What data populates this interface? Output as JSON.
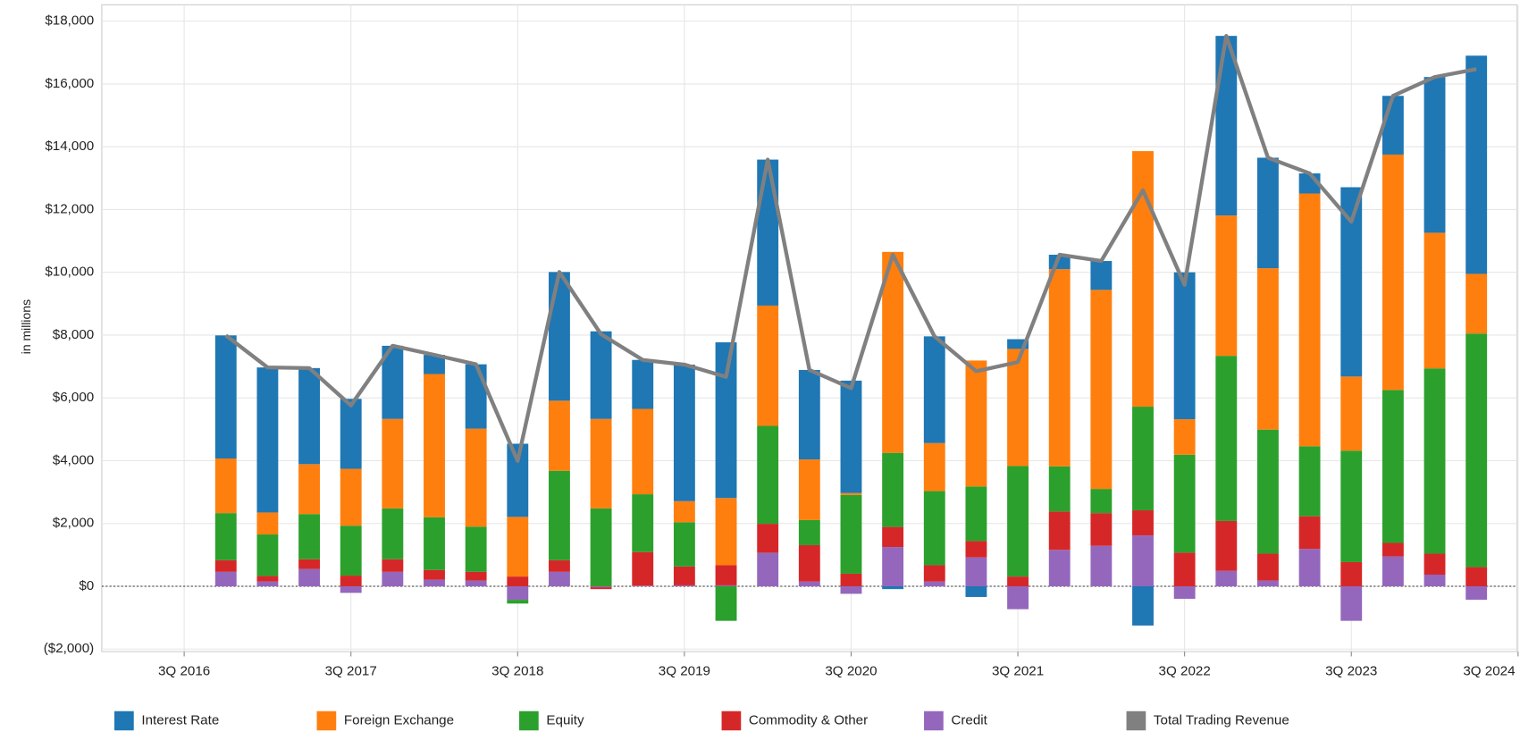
{
  "chart_data": {
    "type": "bar",
    "stacked": true,
    "y_label": "in millions",
    "categories": [
      "3Q 2016",
      null,
      null,
      null,
      "3Q 2017",
      null,
      null,
      null,
      "3Q 2018",
      null,
      null,
      null,
      "3Q 2019",
      null,
      null,
      null,
      "3Q 2020",
      null,
      null,
      null,
      "3Q 2021",
      null,
      null,
      null,
      "3Q 2022",
      null,
      null,
      null,
      "3Q 2023",
      null,
      null,
      null,
      "3Q 2024"
    ],
    "series": [
      {
        "name": "Interest Rate",
        "color": "#1f77b4",
        "values": [
          null,
          3920,
          4620,
          3060,
          2230,
          2330,
          610,
          2050,
          2330,
          4100,
          2790,
          1560,
          4350,
          4960,
          4650,
          2850,
          3580,
          -90,
          3400,
          -340,
          310,
          460,
          920,
          -1250,
          4680,
          5720,
          3520,
          640,
          6030,
          1870,
          4960,
          6950,
          null
        ]
      },
      {
        "name": "Foreign Exchange",
        "color": "#ff7f0e",
        "values": [
          null,
          1740,
          700,
          1590,
          1810,
          2850,
          4560,
          3120,
          1900,
          2230,
          2850,
          2720,
          670,
          2140,
          3830,
          1930,
          60,
          6400,
          1530,
          4010,
          3730,
          6280,
          6340,
          8140,
          1130,
          4470,
          5140,
          8050,
          2360,
          7500,
          4320,
          1900,
          null
        ]
      },
      {
        "name": "Equity",
        "color": "#2ca02c",
        "values": [
          null,
          1500,
          1320,
          1440,
          1590,
          1620,
          1680,
          1440,
          -120,
          2850,
          2480,
          1840,
          1410,
          -1100,
          3120,
          800,
          2510,
          2360,
          2360,
          1740,
          3520,
          1440,
          770,
          3300,
          3120,
          5260,
          3950,
          2230,
          3550,
          4870,
          5900,
          7440,
          null
        ]
      },
      {
        "name": "Commodity & Other",
        "color": "#d62728",
        "values": [
          null,
          370,
          180,
          310,
          340,
          400,
          310,
          280,
          310,
          370,
          -60,
          1070,
          600,
          640,
          920,
          1160,
          400,
          640,
          520,
          520,
          310,
          1220,
          1040,
          800,
          1070,
          1590,
          860,
          1040,
          770,
          430,
          670,
          610,
          null
        ]
      },
      {
        "name": "Credit",
        "color": "#9467bd",
        "values": [
          null,
          460,
          150,
          550,
          -210,
          460,
          210,
          180,
          -430,
          460,
          -30,
          20,
          30,
          30,
          1070,
          150,
          -240,
          1250,
          150,
          920,
          -730,
          1160,
          1290,
          1620,
          -400,
          490,
          180,
          1190,
          -1100,
          950,
          370,
          -430,
          null
        ]
      },
      {
        "name": "Total Trading Revenue",
        "color": "#808080",
        "type": "line",
        "values": [
          null,
          7990,
          6970,
          6950,
          5760,
          7660,
          7370,
          7070,
          3990,
          10010,
          8030,
          7210,
          7060,
          6670,
          13590,
          6890,
          6310,
          10560,
          7960,
          6850,
          7140,
          10560,
          10360,
          12610,
          9600,
          17530,
          13650,
          13150,
          11610,
          15620,
          16220,
          16470,
          null
        ]
      }
    ],
    "ylim": [
      -2080,
      18520
    ],
    "yticks": [
      {
        "value": -2000,
        "label": "($2,000)"
      },
      {
        "value": 0,
        "label": "$0"
      },
      {
        "value": 2000,
        "label": "$2,000"
      },
      {
        "value": 4000,
        "label": "$4,000"
      },
      {
        "value": 6000,
        "label": "$6,000"
      },
      {
        "value": 8000,
        "label": "$8,000"
      },
      {
        "value": 10000,
        "label": "$10,000"
      },
      {
        "value": 12000,
        "label": "$12,000"
      },
      {
        "value": 14000,
        "label": "$14,000"
      },
      {
        "value": 16000,
        "label": "$16,000"
      },
      {
        "value": 18000,
        "label": "$18,000"
      }
    ],
    "grid": true,
    "legend": "bottom"
  }
}
